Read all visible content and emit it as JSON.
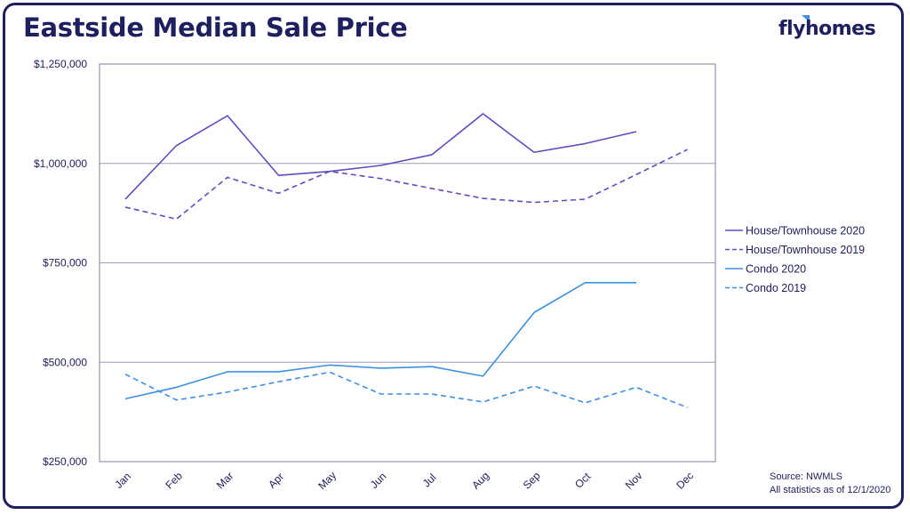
{
  "title": "Eastside Median Sale Price",
  "logo": {
    "text": "flyhomes",
    "accent_color": "#3e8fe3"
  },
  "source": {
    "line1": "Source: NWMLS",
    "line2": "All statistics as of 12/1/2020"
  },
  "colors": {
    "house": "#5b4fbf",
    "condo": "#3e8fe3",
    "grid": "#9e9eb8",
    "text": "#1e1f5e"
  },
  "chart_data": {
    "type": "line",
    "categories": [
      "Jan",
      "Feb",
      "Mar",
      "Apr",
      "May",
      "Jun",
      "Jul",
      "Aug",
      "Sep",
      "Oct",
      "Nov",
      "Dec"
    ],
    "ylim": [
      250000,
      1250000
    ],
    "yticks": [
      250000,
      500000,
      750000,
      1000000,
      1250000
    ],
    "ytick_labels": [
      "$250,000",
      "$500,000",
      "$750,000",
      "$1,000,000",
      "$1,250,000"
    ],
    "grid": true,
    "legend_position": "right",
    "series": [
      {
        "name": "House/Townhouse 2020",
        "color": "#5b4fbf",
        "dashed": false,
        "values": [
          910000,
          1045000,
          1120000,
          970000,
          980000,
          995000,
          1022000,
          1125000,
          1028000,
          1050000,
          1080000,
          null
        ]
      },
      {
        "name": "House/Townhouse 2019",
        "color": "#5b4fbf",
        "dashed": true,
        "values": [
          890000,
          860000,
          965000,
          925000,
          980000,
          962000,
          937000,
          912000,
          902000,
          910000,
          972000,
          1035000
        ]
      },
      {
        "name": "Condo 2020",
        "color": "#3e8fe3",
        "dashed": false,
        "values": [
          408000,
          437000,
          476000,
          476000,
          493000,
          485000,
          489000,
          465000,
          625000,
          700000,
          700000,
          null
        ]
      },
      {
        "name": "Condo 2019",
        "color": "#3e8fe3",
        "dashed": true,
        "values": [
          470000,
          405000,
          425000,
          451000,
          475000,
          420000,
          420000,
          400000,
          440000,
          398000,
          437000,
          386000
        ]
      }
    ]
  }
}
